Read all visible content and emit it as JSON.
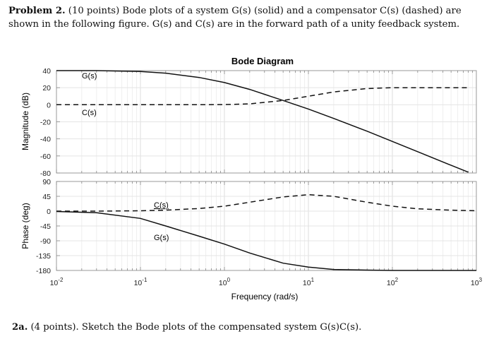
{
  "problem": {
    "lead": "Problem 2.",
    "points": "(10 points)",
    "text": "Bode plots of a system G(s) (solid) and a compensator C(s) (dashed) are shown in the following figure. G(s) and C(s) are in the forward path of a unity feedback system."
  },
  "part2a": {
    "lead": "2a.",
    "text": "(4 points). Sketch the Bode plots of the compensated system G(s)C(s)."
  },
  "chart_data": {
    "type": "line",
    "title": "Bode Diagram",
    "xlabel": "Frequency (rad/s)",
    "xscale": "log",
    "xlim": [
      0.01,
      1000
    ],
    "x_tick_labels": [
      "10^-2",
      "10^-1",
      "10^0",
      "10^1",
      "10^2",
      "10^3"
    ],
    "magnitude": {
      "ylabel": "Magnitude (dB)",
      "ylim": [
        -80,
        40
      ],
      "y_tick_labels": [
        "40",
        "20",
        "0",
        "-20",
        "-40",
        "-60",
        "-80"
      ],
      "x": [
        0.01,
        0.03,
        0.1,
        0.2,
        0.5,
        1,
        2,
        5,
        10,
        20,
        50,
        100,
        200,
        500,
        800
      ],
      "series": [
        {
          "name": "G(s)",
          "style": "solid",
          "values": [
            40,
            40,
            39,
            37,
            32,
            26,
            18,
            5,
            -5,
            -16,
            -31,
            -43,
            -55,
            -71,
            -79
          ]
        },
        {
          "name": "C(s)",
          "style": "dashed",
          "values": [
            0,
            0,
            0,
            0,
            0,
            0.2,
            1,
            5,
            10,
            15,
            19,
            20,
            20,
            20,
            20
          ]
        }
      ]
    },
    "phase": {
      "ylabel": "Phase (deg)",
      "ylim": [
        -180,
        90
      ],
      "y_tick_labels": [
        "90",
        "45",
        "0",
        "-45",
        "-90",
        "-135",
        "-180"
      ],
      "x": [
        0.01,
        0.03,
        0.1,
        0.2,
        0.5,
        1,
        2,
        5,
        10,
        20,
        50,
        100,
        200,
        500,
        1000
      ],
      "series": [
        {
          "name": "G(s)",
          "style": "solid",
          "values": [
            -1,
            -5,
            -22,
            -45,
            -76,
            -100,
            -127,
            -158,
            -170,
            -177,
            -179,
            -180,
            -180,
            -180,
            -180
          ]
        },
        {
          "name": "C(s)",
          "style": "dashed",
          "values": [
            0,
            0,
            1,
            3,
            8,
            15,
            27,
            43,
            50,
            45,
            27,
            15,
            7,
            3,
            1
          ]
        }
      ]
    },
    "annotations": {
      "mag_G": "G(s)",
      "mag_C": "C(s)",
      "phase_C": "C(s)",
      "phase_G": "G(s)"
    },
    "grid": true
  }
}
